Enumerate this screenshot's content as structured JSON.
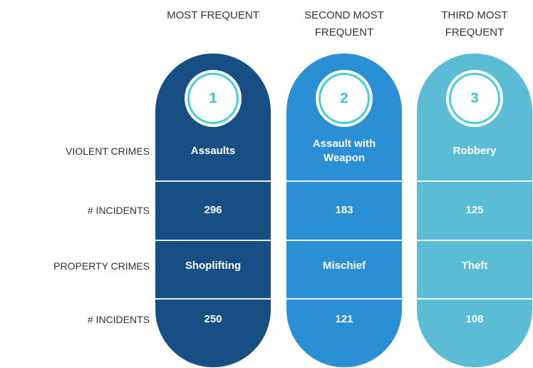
{
  "row_labels": [
    "VIOLENT CRIMES",
    "# INCIDENTS",
    "PROPERTY CRIMES",
    "# INCIDENTS"
  ],
  "columns": [
    {
      "header": "MOST FREQUENT",
      "rank": 1,
      "cells": [
        "Assaults",
        296,
        "Shoplifting",
        250
      ],
      "color": "#174f85"
    },
    {
      "header": "SECOND MOST FREQUENT",
      "rank": 2,
      "cells": [
        "Assault with Weapon",
        183,
        "Mischief",
        121
      ],
      "color": "#2b8fd6"
    },
    {
      "header": "THIRD MOST FREQUENT",
      "rank": 3,
      "cells": [
        "Robbery",
        125,
        "Theft",
        108
      ],
      "color": "#5bbcd6"
    }
  ]
}
